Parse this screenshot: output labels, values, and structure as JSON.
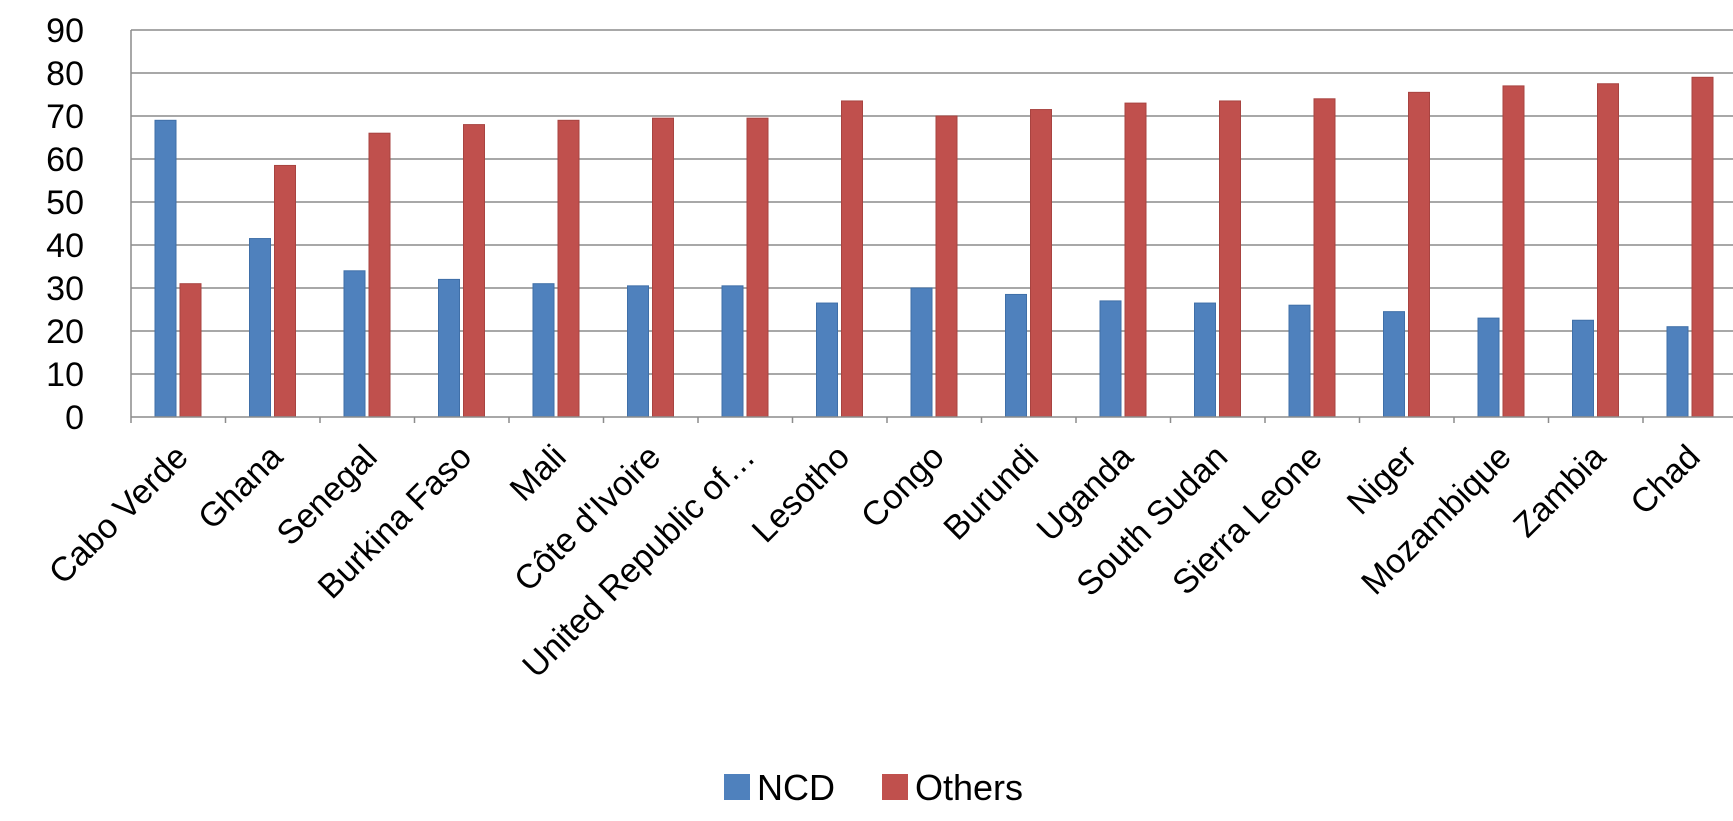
{
  "chart_data": {
    "type": "bar",
    "title": "",
    "xlabel": "",
    "ylabel": "",
    "ylim": [
      0,
      90
    ],
    "yticks": [
      0,
      10,
      20,
      30,
      40,
      50,
      60,
      70,
      80,
      90
    ],
    "grid": true,
    "legend_position": "bottom",
    "categories": [
      "Cabo Verde",
      "Ghana",
      "Senegal",
      "Burkina Faso",
      "Mali",
      "Côte d'Ivoire",
      "United Republic of…",
      "Lesotho",
      "Congo",
      "Burundi",
      "Uganda",
      "South Sudan",
      "Sierra Leone",
      "Niger",
      "Mozambique",
      "Zambia",
      "Chad"
    ],
    "series": [
      {
        "name": "NCD",
        "color": "#4F81BD",
        "values": [
          69,
          41.5,
          34,
          32,
          31,
          30.5,
          30.5,
          26.5,
          30,
          28.5,
          27,
          26.5,
          26,
          24.5,
          23,
          22.5,
          21
        ]
      },
      {
        "name": "Others",
        "color": "#C0504D",
        "values": [
          31,
          58.5,
          66,
          68,
          69,
          69.5,
          69.5,
          73.5,
          70,
          71.5,
          73,
          73.5,
          74,
          75.5,
          77,
          77.5,
          79
        ]
      }
    ]
  }
}
